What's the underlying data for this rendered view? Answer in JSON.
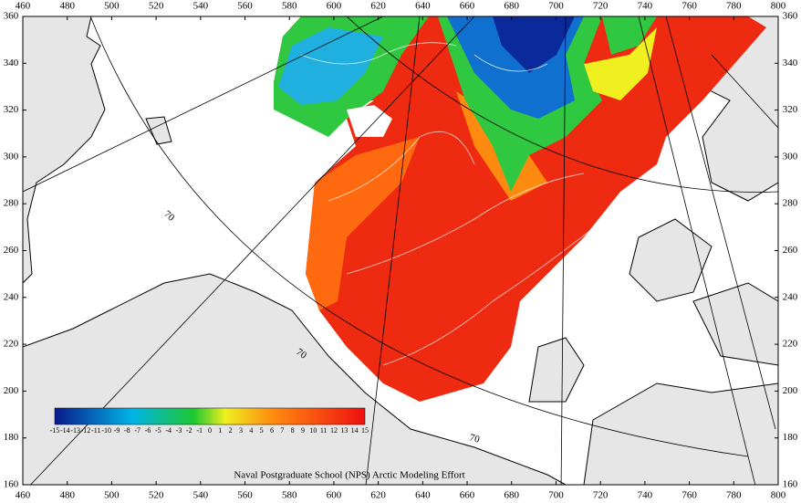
{
  "axes": {
    "x_ticks": [
      460,
      480,
      500,
      520,
      540,
      560,
      580,
      600,
      620,
      640,
      660,
      680,
      700,
      720,
      740,
      760,
      780,
      800
    ],
    "y_ticks": [
      160,
      180,
      200,
      220,
      240,
      260,
      280,
      300,
      320,
      340,
      360
    ]
  },
  "latitude_labels": [
    "70",
    "70",
    "70"
  ],
  "colorbar": {
    "labels": [
      "-15",
      "-14",
      "-13",
      "-12",
      "-11",
      "-10",
      "-9",
      "-8",
      "-7",
      "-6",
      "-5",
      "-4",
      "-3",
      "-2",
      "-1",
      "0",
      "1",
      "2",
      "3",
      "4",
      "5",
      "6",
      "7",
      "8",
      "9",
      "10",
      "11",
      "12",
      "13",
      "14",
      "15"
    ]
  },
  "credit": "Naval Postgraduate School (NPS) Arctic Modeling Effort"
}
